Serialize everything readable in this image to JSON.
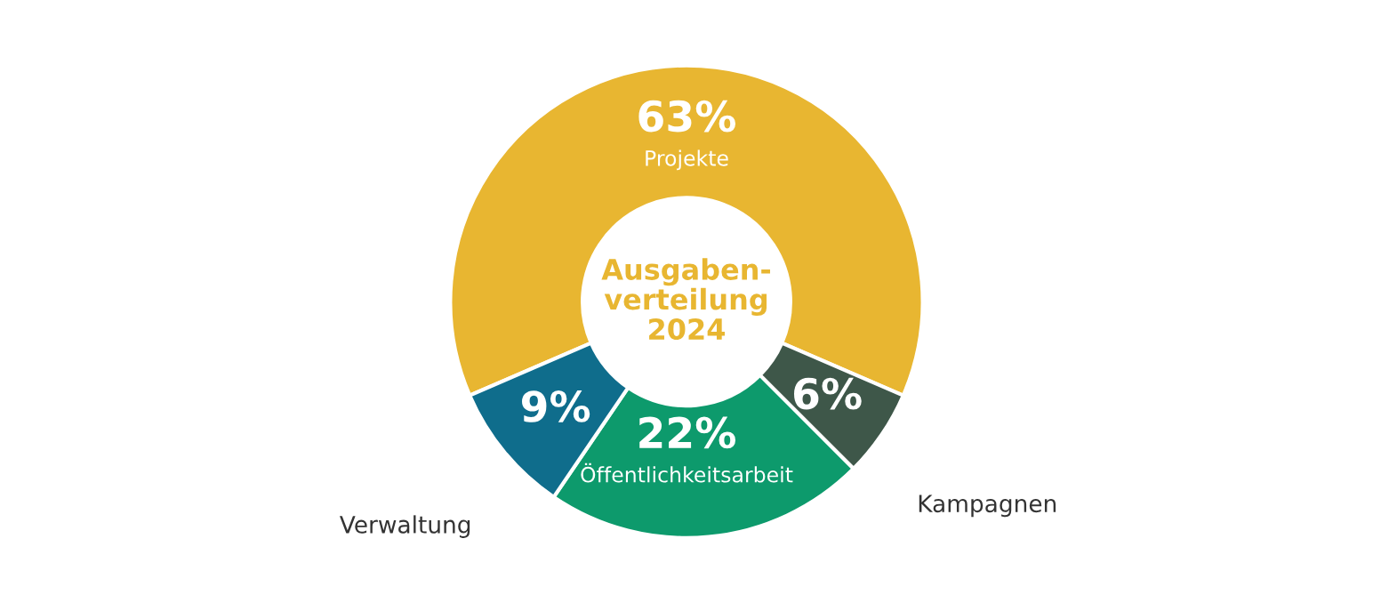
{
  "chart_data": {
    "type": "donut",
    "title": "Ausgaben-\nverteilung\n2024",
    "categories": [
      "Projekte",
      "Kampagnen",
      "Öffentlichkeitsarbeit",
      "Verwaltung"
    ],
    "values": [
      63,
      6,
      22,
      9
    ],
    "colors": [
      "#e8b631",
      "#3e5749",
      "#0d9a6c",
      "#0f6d8c"
    ],
    "value_labels": [
      "63%",
      "6%",
      "22%",
      "9%"
    ]
  }
}
